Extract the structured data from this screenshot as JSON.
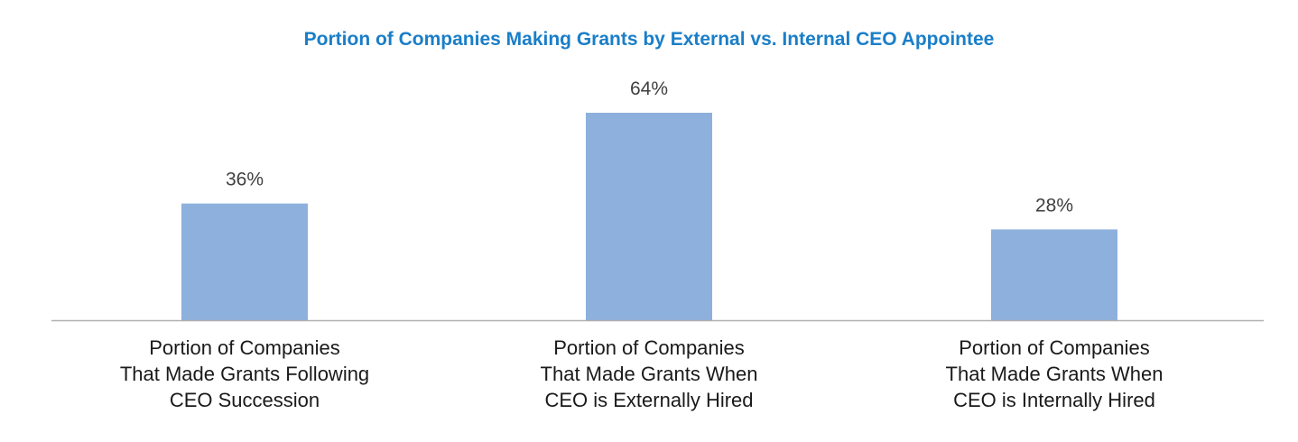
{
  "chart_data": {
    "type": "bar",
    "title": "Portion of Companies Making Grants by External vs. Internal CEO Appointee",
    "categories": [
      [
        "Portion of Companies",
        "That Made Grants Following",
        "CEO Succession"
      ],
      [
        "Portion of Companies",
        "That Made Grants When",
        "CEO is Externally Hired"
      ],
      [
        "Portion of Companies",
        "That Made Grants When",
        "CEO is Internally Hired"
      ]
    ],
    "values": [
      36,
      64,
      28
    ],
    "data_labels": [
      "36%",
      "64%",
      "28%"
    ],
    "xlabel": "",
    "ylabel": "",
    "ylim": [
      0,
      64
    ],
    "grid": false,
    "legend": "none",
    "colors": {
      "bar": "#8db0dd",
      "title": "#1a7ec8",
      "axis": "#b0b0b0",
      "data_label": "#404040",
      "tick_label": "#1a1a1a"
    }
  }
}
